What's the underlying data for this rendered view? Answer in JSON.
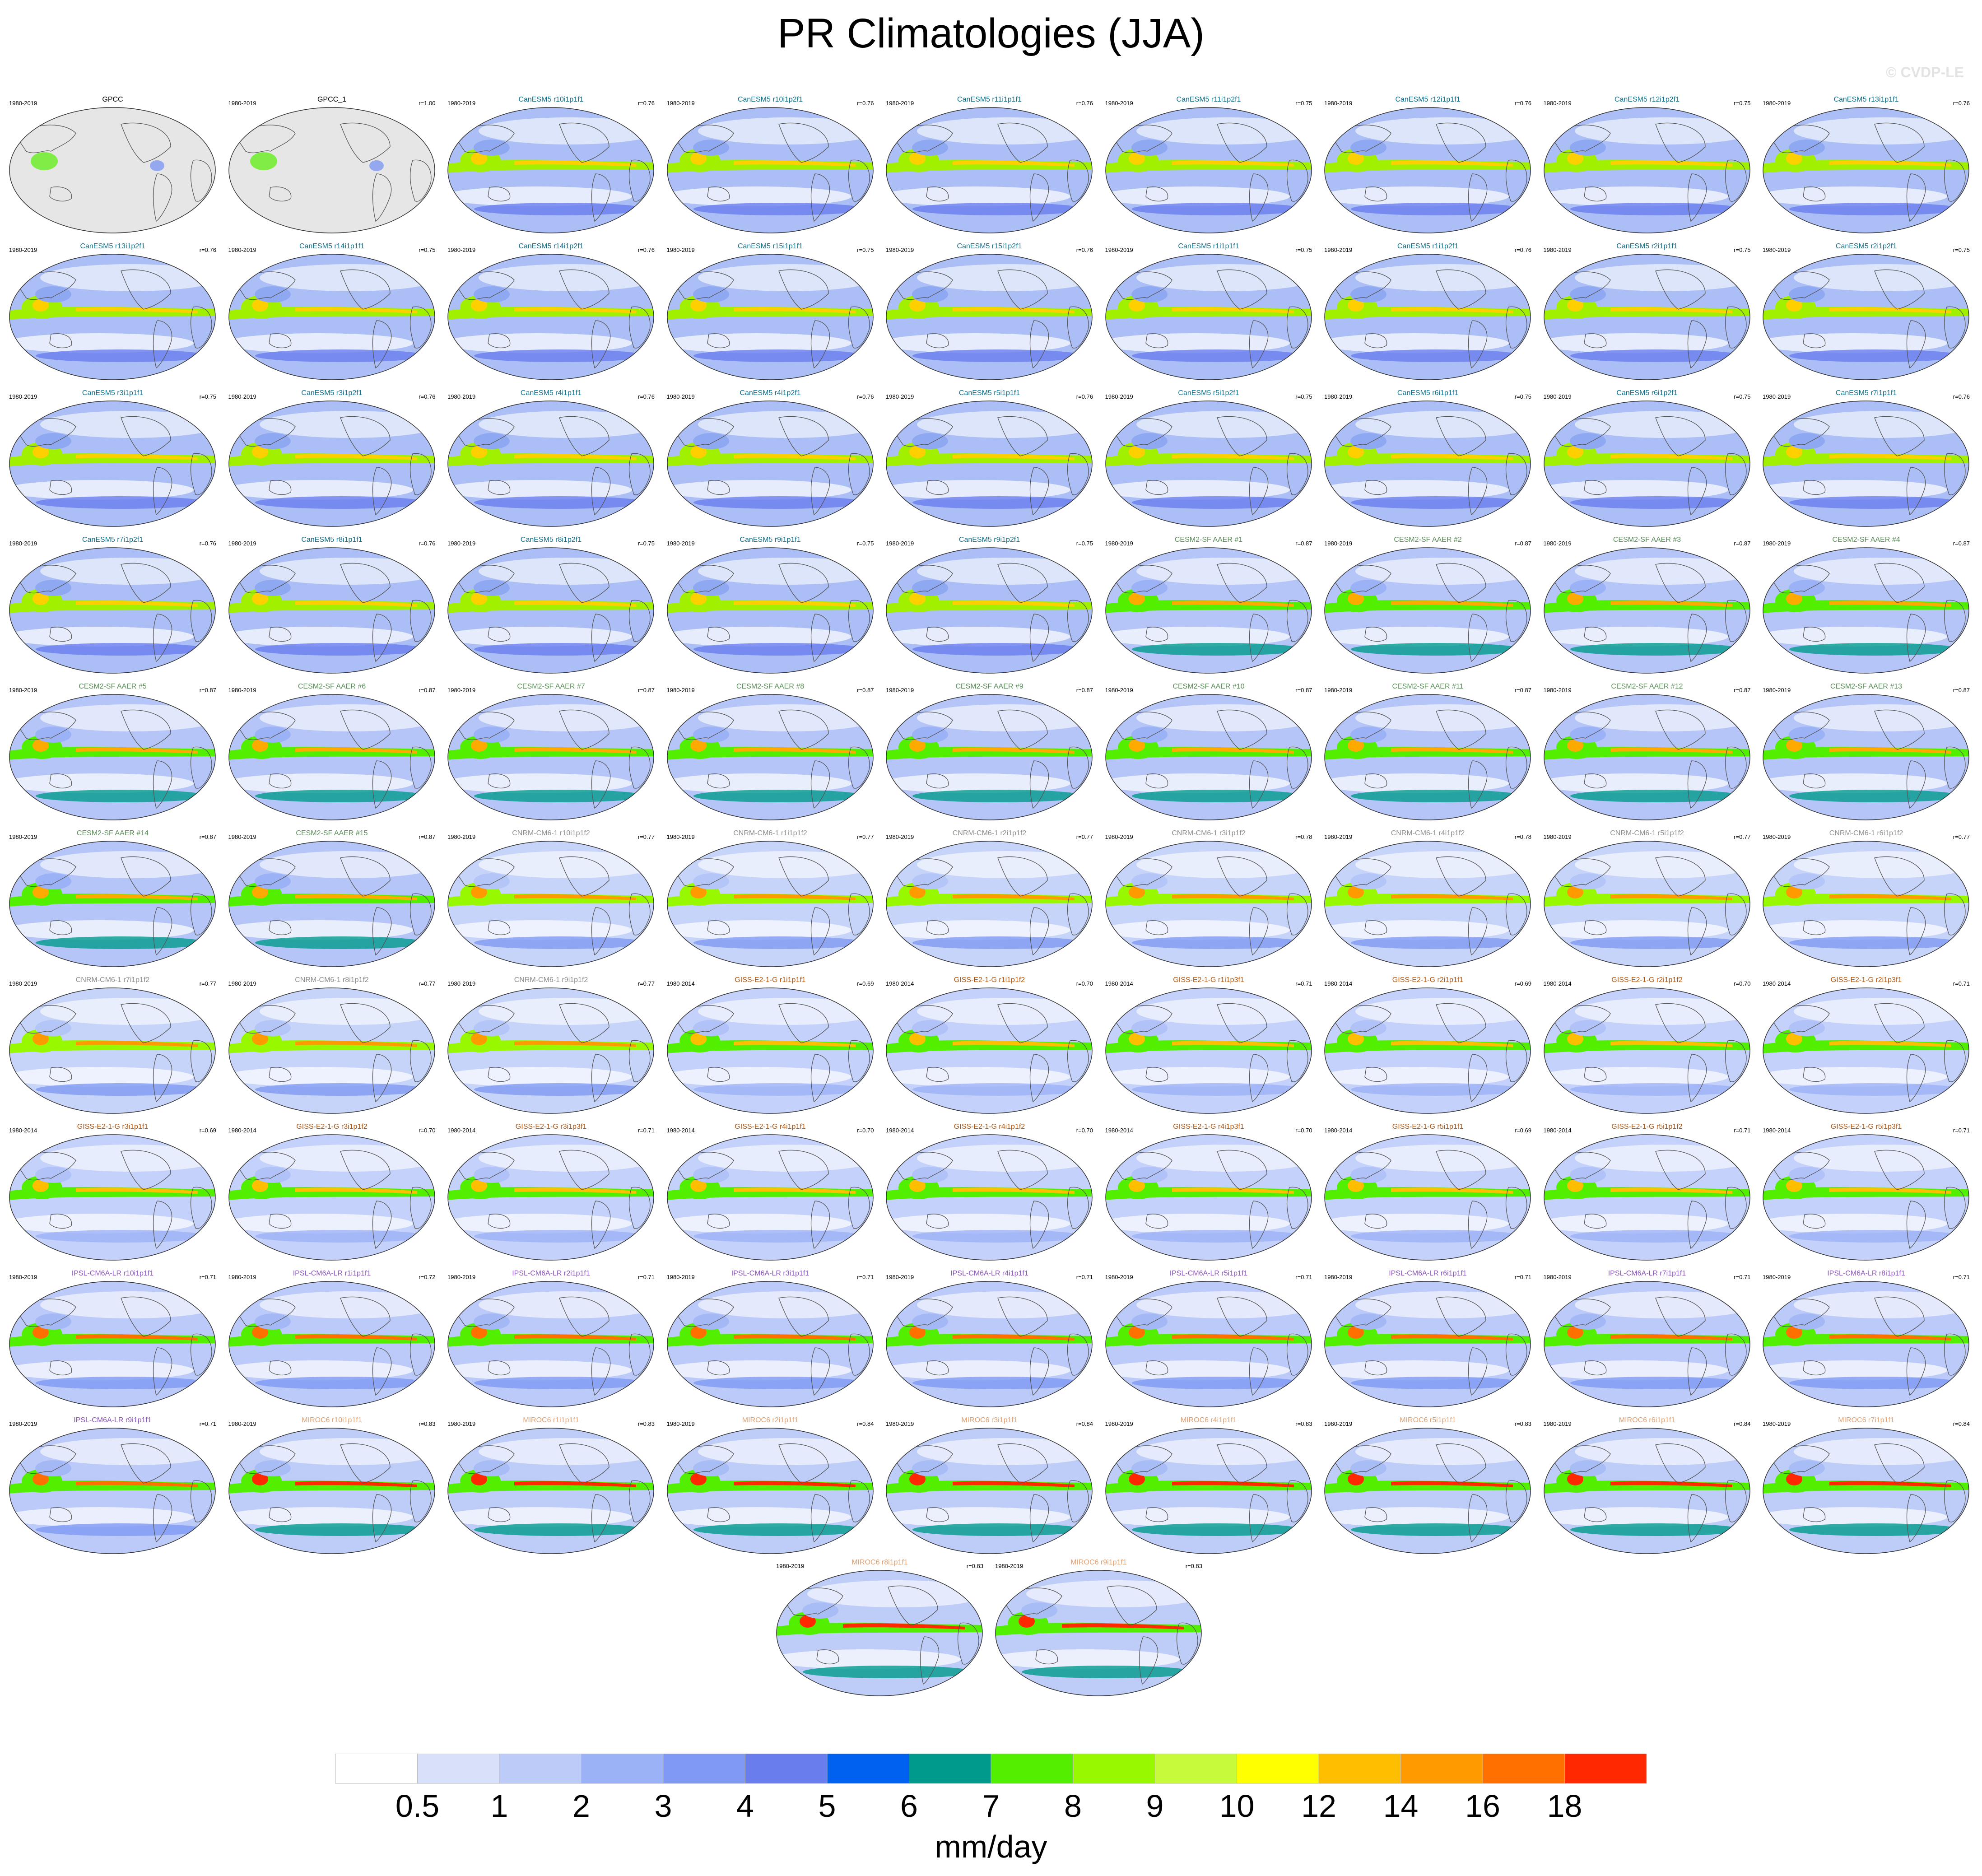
{
  "title": "PR Climatologies (JJA)",
  "credit": "© CVDP-LE",
  "colors": {
    "canesm5": "#0e6f8a",
    "cesm2": "#5a8c58",
    "cnrm": "#8d8d8d",
    "giss": "#b0560f",
    "ipsl": "#8a55b8",
    "miroc": "#e0a070",
    "obs": "#000000"
  },
  "panels": [
    {
      "title": "GPCC",
      "period": "1980-2019",
      "corr": "",
      "group": "obs",
      "style": "obs"
    },
    {
      "title": "GPCC_1",
      "period": "1980-2019",
      "corr": "r=1.00",
      "group": "obs",
      "style": "obs"
    },
    {
      "title": "CanESM5 r10i1p1f1",
      "period": "1980-2019",
      "corr": "r=0.76",
      "group": "canesm5",
      "style": "can"
    },
    {
      "title": "CanESM5 r10i1p2f1",
      "period": "1980-2019",
      "corr": "r=0.76",
      "group": "canesm5",
      "style": "can"
    },
    {
      "title": "CanESM5 r11i1p1f1",
      "period": "1980-2019",
      "corr": "r=0.76",
      "group": "canesm5",
      "style": "can"
    },
    {
      "title": "CanESM5 r11i1p2f1",
      "period": "1980-2019",
      "corr": "r=0.75",
      "group": "canesm5",
      "style": "can"
    },
    {
      "title": "CanESM5 r12i1p1f1",
      "period": "1980-2019",
      "corr": "r=0.76",
      "group": "canesm5",
      "style": "can"
    },
    {
      "title": "CanESM5 r12i1p2f1",
      "period": "1980-2019",
      "corr": "r=0.75",
      "group": "canesm5",
      "style": "can"
    },
    {
      "title": "CanESM5 r13i1p1f1",
      "period": "1980-2019",
      "corr": "r=0.76",
      "group": "canesm5",
      "style": "can"
    },
    {
      "title": "CanESM5 r13i1p2f1",
      "period": "1980-2019",
      "corr": "r=0.76",
      "group": "canesm5",
      "style": "can"
    },
    {
      "title": "CanESM5 r14i1p1f1",
      "period": "1980-2019",
      "corr": "r=0.75",
      "group": "canesm5",
      "style": "can"
    },
    {
      "title": "CanESM5 r14i1p2f1",
      "period": "1980-2019",
      "corr": "r=0.76",
      "group": "canesm5",
      "style": "can"
    },
    {
      "title": "CanESM5 r15i1p1f1",
      "period": "1980-2019",
      "corr": "r=0.75",
      "group": "canesm5",
      "style": "can"
    },
    {
      "title": "CanESM5 r15i1p2f1",
      "period": "1980-2019",
      "corr": "r=0.76",
      "group": "canesm5",
      "style": "can"
    },
    {
      "title": "CanESM5 r1i1p1f1",
      "period": "1980-2019",
      "corr": "r=0.75",
      "group": "canesm5",
      "style": "can"
    },
    {
      "title": "CanESM5 r1i1p2f1",
      "period": "1980-2019",
      "corr": "r=0.76",
      "group": "canesm5",
      "style": "can"
    },
    {
      "title": "CanESM5 r2i1p1f1",
      "period": "1980-2019",
      "corr": "r=0.75",
      "group": "canesm5",
      "style": "can"
    },
    {
      "title": "CanESM5 r2i1p2f1",
      "period": "1980-2019",
      "corr": "r=0.75",
      "group": "canesm5",
      "style": "can"
    },
    {
      "title": "CanESM5 r3i1p1f1",
      "period": "1980-2019",
      "corr": "r=0.75",
      "group": "canesm5",
      "style": "can"
    },
    {
      "title": "CanESM5 r3i1p2f1",
      "period": "1980-2019",
      "corr": "r=0.76",
      "group": "canesm5",
      "style": "can"
    },
    {
      "title": "CanESM5 r4i1p1f1",
      "period": "1980-2019",
      "corr": "r=0.76",
      "group": "canesm5",
      "style": "can"
    },
    {
      "title": "CanESM5 r4i1p2f1",
      "period": "1980-2019",
      "corr": "r=0.76",
      "group": "canesm5",
      "style": "can"
    },
    {
      "title": "CanESM5 r5i1p1f1",
      "period": "1980-2019",
      "corr": "r=0.76",
      "group": "canesm5",
      "style": "can"
    },
    {
      "title": "CanESM5 r5i1p2f1",
      "period": "1980-2019",
      "corr": "r=0.75",
      "group": "canesm5",
      "style": "can"
    },
    {
      "title": "CanESM5 r6i1p1f1",
      "period": "1980-2019",
      "corr": "r=0.75",
      "group": "canesm5",
      "style": "can"
    },
    {
      "title": "CanESM5 r6i1p2f1",
      "period": "1980-2019",
      "corr": "r=0.75",
      "group": "canesm5",
      "style": "can"
    },
    {
      "title": "CanESM5 r7i1p1f1",
      "period": "1980-2019",
      "corr": "r=0.76",
      "group": "canesm5",
      "style": "can"
    },
    {
      "title": "CanESM5 r7i1p2f1",
      "period": "1980-2019",
      "corr": "r=0.76",
      "group": "canesm5",
      "style": "can"
    },
    {
      "title": "CanESM5 r8i1p1f1",
      "period": "1980-2019",
      "corr": "r=0.76",
      "group": "canesm5",
      "style": "can"
    },
    {
      "title": "CanESM5 r8i1p2f1",
      "period": "1980-2019",
      "corr": "r=0.75",
      "group": "canesm5",
      "style": "can"
    },
    {
      "title": "CanESM5 r9i1p1f1",
      "period": "1980-2019",
      "corr": "r=0.75",
      "group": "canesm5",
      "style": "can"
    },
    {
      "title": "CanESM5 r9i1p2f1",
      "period": "1980-2019",
      "corr": "r=0.75",
      "group": "canesm5",
      "style": "can"
    },
    {
      "title": "CESM2-SF AAER #1",
      "period": "1980-2019",
      "corr": "r=0.87",
      "group": "cesm2",
      "style": "cesm"
    },
    {
      "title": "CESM2-SF AAER #2",
      "period": "1980-2019",
      "corr": "r=0.87",
      "group": "cesm2",
      "style": "cesm"
    },
    {
      "title": "CESM2-SF AAER #3",
      "period": "1980-2019",
      "corr": "r=0.87",
      "group": "cesm2",
      "style": "cesm"
    },
    {
      "title": "CESM2-SF AAER #4",
      "period": "1980-2019",
      "corr": "r=0.87",
      "group": "cesm2",
      "style": "cesm"
    },
    {
      "title": "CESM2-SF AAER #5",
      "period": "1980-2019",
      "corr": "r=0.87",
      "group": "cesm2",
      "style": "cesm"
    },
    {
      "title": "CESM2-SF AAER #6",
      "period": "1980-2019",
      "corr": "r=0.87",
      "group": "cesm2",
      "style": "cesm"
    },
    {
      "title": "CESM2-SF AAER #7",
      "period": "1980-2019",
      "corr": "r=0.87",
      "group": "cesm2",
      "style": "cesm"
    },
    {
      "title": "CESM2-SF AAER #8",
      "period": "1980-2019",
      "corr": "r=0.87",
      "group": "cesm2",
      "style": "cesm"
    },
    {
      "title": "CESM2-SF AAER #9",
      "period": "1980-2019",
      "corr": "r=0.87",
      "group": "cesm2",
      "style": "cesm"
    },
    {
      "title": "CESM2-SF AAER #10",
      "period": "1980-2019",
      "corr": "r=0.87",
      "group": "cesm2",
      "style": "cesm"
    },
    {
      "title": "CESM2-SF AAER #11",
      "period": "1980-2019",
      "corr": "r=0.87",
      "group": "cesm2",
      "style": "cesm"
    },
    {
      "title": "CESM2-SF AAER #12",
      "period": "1980-2019",
      "corr": "r=0.87",
      "group": "cesm2",
      "style": "cesm"
    },
    {
      "title": "CESM2-SF AAER #13",
      "period": "1980-2019",
      "corr": "r=0.87",
      "group": "cesm2",
      "style": "cesm"
    },
    {
      "title": "CESM2-SF AAER #14",
      "period": "1980-2019",
      "corr": "r=0.87",
      "group": "cesm2",
      "style": "cesm"
    },
    {
      "title": "CESM2-SF AAER #15",
      "period": "1980-2019",
      "corr": "r=0.87",
      "group": "cesm2",
      "style": "cesm"
    },
    {
      "title": "CNRM-CM6-1 r10i1p1f2",
      "period": "1980-2019",
      "corr": "r=0.77",
      "group": "cnrm",
      "style": "cnrm"
    },
    {
      "title": "CNRM-CM6-1 r1i1p1f2",
      "period": "1980-2019",
      "corr": "r=0.77",
      "group": "cnrm",
      "style": "cnrm"
    },
    {
      "title": "CNRM-CM6-1 r2i1p1f2",
      "period": "1980-2019",
      "corr": "r=0.77",
      "group": "cnrm",
      "style": "cnrm"
    },
    {
      "title": "CNRM-CM6-1 r3i1p1f2",
      "period": "1980-2019",
      "corr": "r=0.78",
      "group": "cnrm",
      "style": "cnrm"
    },
    {
      "title": "CNRM-CM6-1 r4i1p1f2",
      "period": "1980-2019",
      "corr": "r=0.78",
      "group": "cnrm",
      "style": "cnrm"
    },
    {
      "title": "CNRM-CM6-1 r5i1p1f2",
      "period": "1980-2019",
      "corr": "r=0.77",
      "group": "cnrm",
      "style": "cnrm"
    },
    {
      "title": "CNRM-CM6-1 r6i1p1f2",
      "period": "1980-2019",
      "corr": "r=0.77",
      "group": "cnrm",
      "style": "cnrm"
    },
    {
      "title": "CNRM-CM6-1 r7i1p1f2",
      "period": "1980-2019",
      "corr": "r=0.77",
      "group": "cnrm",
      "style": "cnrm"
    },
    {
      "title": "CNRM-CM6-1 r8i1p1f2",
      "period": "1980-2019",
      "corr": "r=0.77",
      "group": "cnrm",
      "style": "cnrm"
    },
    {
      "title": "CNRM-CM6-1 r9i1p1f2",
      "period": "1980-2019",
      "corr": "r=0.77",
      "group": "cnrm",
      "style": "cnrm"
    },
    {
      "title": "GISS-E2-1-G r1i1p1f1",
      "period": "1980-2014",
      "corr": "r=0.69",
      "group": "giss",
      "style": "giss"
    },
    {
      "title": "GISS-E2-1-G r1i1p1f2",
      "period": "1980-2014",
      "corr": "r=0.70",
      "group": "giss",
      "style": "giss"
    },
    {
      "title": "GISS-E2-1-G r1i1p3f1",
      "period": "1980-2014",
      "corr": "r=0.71",
      "group": "giss",
      "style": "giss"
    },
    {
      "title": "GISS-E2-1-G r2i1p1f1",
      "period": "1980-2014",
      "corr": "r=0.69",
      "group": "giss",
      "style": "giss"
    },
    {
      "title": "GISS-E2-1-G r2i1p1f2",
      "period": "1980-2014",
      "corr": "r=0.70",
      "group": "giss",
      "style": "giss"
    },
    {
      "title": "GISS-E2-1-G r2i1p3f1",
      "period": "1980-2014",
      "corr": "r=0.71",
      "group": "giss",
      "style": "giss"
    },
    {
      "title": "GISS-E2-1-G r3i1p1f1",
      "period": "1980-2014",
      "corr": "r=0.69",
      "group": "giss",
      "style": "giss"
    },
    {
      "title": "GISS-E2-1-G r3i1p1f2",
      "period": "1980-2014",
      "corr": "r=0.70",
      "group": "giss",
      "style": "giss"
    },
    {
      "title": "GISS-E2-1-G r3i1p3f1",
      "period": "1980-2014",
      "corr": "r=0.71",
      "group": "giss",
      "style": "giss"
    },
    {
      "title": "GISS-E2-1-G r4i1p1f1",
      "period": "1980-2014",
      "corr": "r=0.70",
      "group": "giss",
      "style": "giss"
    },
    {
      "title": "GISS-E2-1-G r4i1p1f2",
      "period": "1980-2014",
      "corr": "r=0.70",
      "group": "giss",
      "style": "giss"
    },
    {
      "title": "GISS-E2-1-G r4i1p3f1",
      "period": "1980-2014",
      "corr": "r=0.70",
      "group": "giss",
      "style": "giss"
    },
    {
      "title": "GISS-E2-1-G r5i1p1f1",
      "period": "1980-2014",
      "corr": "r=0.69",
      "group": "giss",
      "style": "giss"
    },
    {
      "title": "GISS-E2-1-G r5i1p1f2",
      "period": "1980-2014",
      "corr": "r=0.71",
      "group": "giss",
      "style": "giss"
    },
    {
      "title": "GISS-E2-1-G r5i1p3f1",
      "period": "1980-2014",
      "corr": "r=0.71",
      "group": "giss",
      "style": "giss"
    },
    {
      "title": "IPSL-CM6A-LR r10i1p1f1",
      "period": "1980-2019",
      "corr": "r=0.71",
      "group": "ipsl",
      "style": "ipsl"
    },
    {
      "title": "IPSL-CM6A-LR r1i1p1f1",
      "period": "1980-2019",
      "corr": "r=0.72",
      "group": "ipsl",
      "style": "ipsl"
    },
    {
      "title": "IPSL-CM6A-LR r2i1p1f1",
      "period": "1980-2019",
      "corr": "r=0.71",
      "group": "ipsl",
      "style": "ipsl"
    },
    {
      "title": "IPSL-CM6A-LR r3i1p1f1",
      "period": "1980-2019",
      "corr": "r=0.71",
      "group": "ipsl",
      "style": "ipsl"
    },
    {
      "title": "IPSL-CM6A-LR r4i1p1f1",
      "period": "1980-2019",
      "corr": "r=0.71",
      "group": "ipsl",
      "style": "ipsl"
    },
    {
      "title": "IPSL-CM6A-LR r5i1p1f1",
      "period": "1980-2019",
      "corr": "r=0.71",
      "group": "ipsl",
      "style": "ipsl"
    },
    {
      "title": "IPSL-CM6A-LR r6i1p1f1",
      "period": "1980-2019",
      "corr": "r=0.71",
      "group": "ipsl",
      "style": "ipsl"
    },
    {
      "title": "IPSL-CM6A-LR r7i1p1f1",
      "period": "1980-2019",
      "corr": "r=0.71",
      "group": "ipsl",
      "style": "ipsl"
    },
    {
      "title": "IPSL-CM6A-LR r8i1p1f1",
      "period": "1980-2019",
      "corr": "r=0.71",
      "group": "ipsl",
      "style": "ipsl"
    },
    {
      "title": "IPSL-CM6A-LR r9i1p1f1",
      "period": "1980-2019",
      "corr": "r=0.71",
      "group": "ipsl",
      "style": "ipsl"
    },
    {
      "title": "MIROC6 r10i1p1f1",
      "period": "1980-2019",
      "corr": "r=0.83",
      "group": "miroc",
      "style": "miroc"
    },
    {
      "title": "MIROC6 r1i1p1f1",
      "period": "1980-2019",
      "corr": "r=0.83",
      "group": "miroc",
      "style": "miroc"
    },
    {
      "title": "MIROC6 r2i1p1f1",
      "period": "1980-2019",
      "corr": "r=0.84",
      "group": "miroc",
      "style": "miroc"
    },
    {
      "title": "MIROC6 r3i1p1f1",
      "period": "1980-2019",
      "corr": "r=0.84",
      "group": "miroc",
      "style": "miroc"
    },
    {
      "title": "MIROC6 r4i1p1f1",
      "period": "1980-2019",
      "corr": "r=0.83",
      "group": "miroc",
      "style": "miroc"
    },
    {
      "title": "MIROC6 r5i1p1f1",
      "period": "1980-2019",
      "corr": "r=0.83",
      "group": "miroc",
      "style": "miroc"
    },
    {
      "title": "MIROC6 r6i1p1f1",
      "period": "1980-2019",
      "corr": "r=0.84",
      "group": "miroc",
      "style": "miroc"
    },
    {
      "title": "MIROC6 r7i1p1f1",
      "period": "1980-2019",
      "corr": "r=0.84",
      "group": "miroc",
      "style": "miroc"
    },
    {
      "title": "MIROC6 r8i1p1f1",
      "period": "1980-2019",
      "corr": "r=0.83",
      "group": "miroc",
      "style": "miroc"
    },
    {
      "title": "MIROC6 r9i1p1f1",
      "period": "1980-2019",
      "corr": "r=0.83",
      "group": "miroc",
      "style": "miroc"
    }
  ],
  "colorbar": {
    "colors": [
      "#ffffff",
      "#d8e0fa",
      "#bccbf8",
      "#9cb2f6",
      "#8099f2",
      "#6a7ded",
      "#0060f0",
      "#009a8c",
      "#52f000",
      "#98f800",
      "#c8fa3c",
      "#ffff00",
      "#ffbe00",
      "#ff9a00",
      "#ff7000",
      "#ff2800"
    ],
    "labels": [
      "0.5",
      "1",
      "2",
      "3",
      "4",
      "5",
      "6",
      "7",
      "8",
      "9",
      "10",
      "12",
      "14",
      "16",
      "18"
    ],
    "units": "mm/day"
  }
}
